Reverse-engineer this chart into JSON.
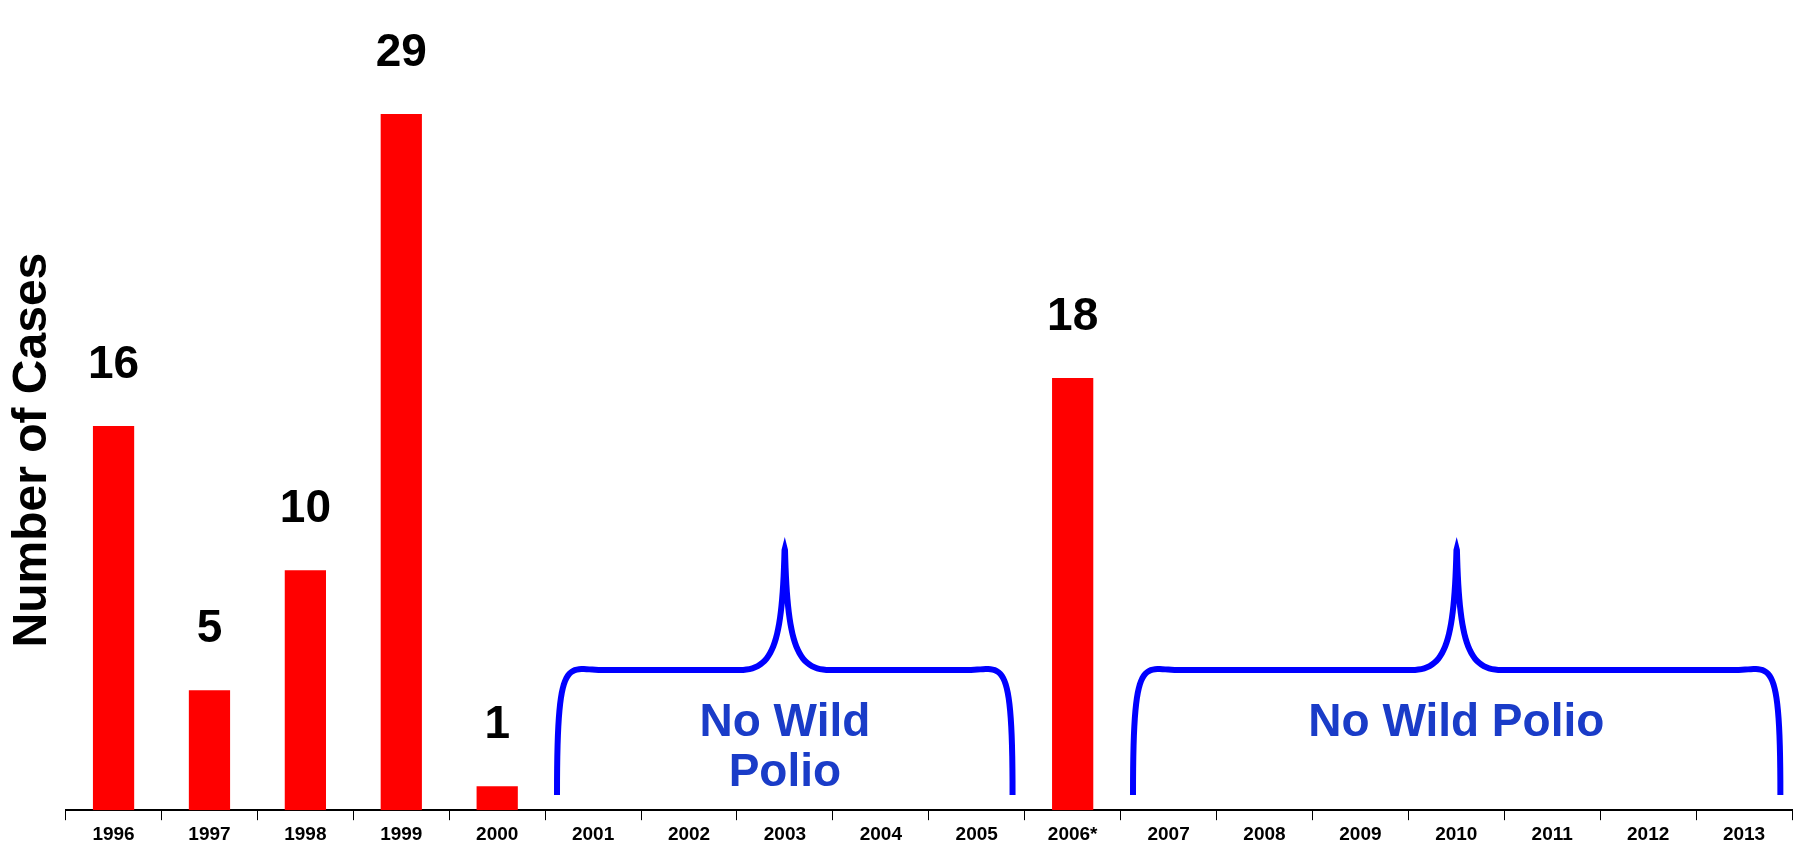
{
  "chart_data": {
    "type": "bar",
    "ylabel": "Number of Cases",
    "categories": [
      "1996",
      "1997",
      "1998",
      "1999",
      "2000",
      "2001",
      "2002",
      "2003",
      "2004",
      "2005",
      "2006*",
      "2007",
      "2008",
      "2009",
      "2010",
      "2011",
      "2012",
      "2013"
    ],
    "values": [
      16,
      5,
      10,
      29,
      1,
      0,
      0,
      0,
      0,
      0,
      18,
      0,
      0,
      0,
      0,
      0,
      0,
      0
    ],
    "value_labels": [
      "16",
      "5",
      "10",
      "29",
      "1",
      null,
      null,
      null,
      null,
      null,
      "18",
      null,
      null,
      null,
      null,
      null,
      null,
      null
    ],
    "color": "#ff0000",
    "annotations": [
      "No Wild Polio",
      "No Wild Polio"
    ],
    "grid": false,
    "legend": false
  }
}
